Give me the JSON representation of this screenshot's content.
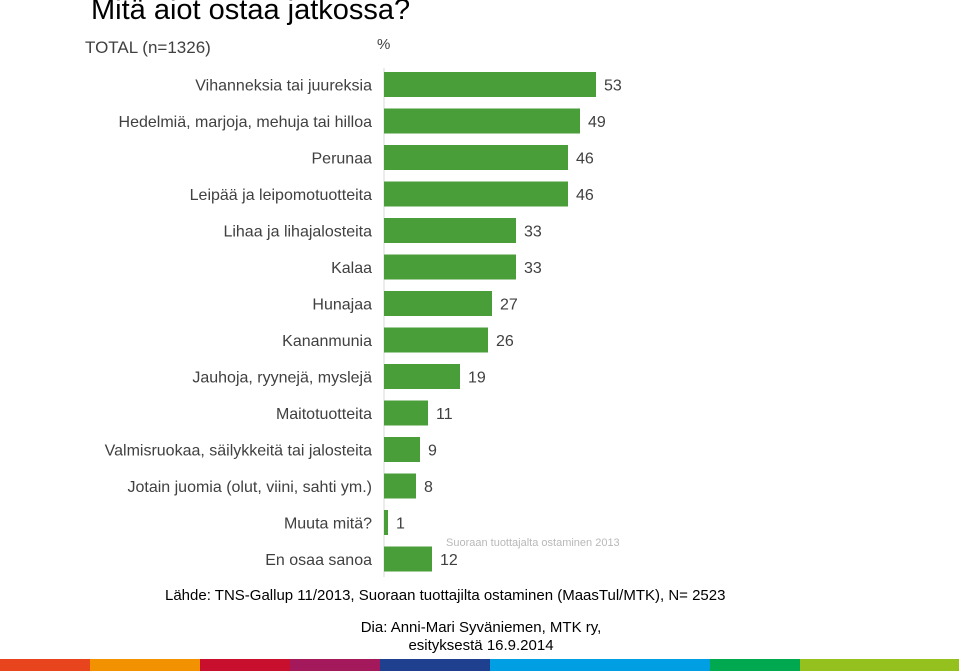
{
  "title": "Mitä aiot ostaa jatkossa?",
  "chart_data": {
    "type": "bar",
    "orientation": "horizontal",
    "subtitle": "TOTAL (n=1326)",
    "unit_label": "%",
    "categories": [
      "Vihanneksia tai juureksia",
      "Hedelmiä, marjoja, mehuja tai hilloa",
      "Perunaa",
      "Leipää ja leipomotuotteita",
      "Lihaa ja lihajalosteita",
      "Kalaa",
      "Hunajaa",
      "Kananmunia",
      "Jauhoja, ryynejä, myslejä",
      "Maitotuotteita",
      "Valmisruokaa, säilykkeitä tai jalosteita",
      "Jotain juomia (olut, viini, sahti ym.)",
      "Muuta mitä?",
      "En osaa sanoa"
    ],
    "values": [
      53,
      49,
      46,
      46,
      33,
      33,
      27,
      26,
      19,
      11,
      9,
      8,
      1,
      12
    ],
    "xlim": [
      0,
      100
    ],
    "bar_color": "#4a9e3a",
    "watermark": "Suoraan tuottajalta ostaminen 2013"
  },
  "footer": {
    "source": "Lähde: TNS-Gallup 11/2013, Suoraan tuottajilta ostaminen (MaasTul/MTK), N= 2523",
    "credit_line1": "Dia: Anni-Mari Syväniemen, MTK ry,",
    "credit_line2": "esityksestä 16.9.2014"
  },
  "stripe_colors": [
    "#e8451e",
    "#f39200",
    "#c8102e",
    "#a3195b",
    "#1f3f8f",
    "#009fe3",
    "#00a94f",
    "#95c11f"
  ]
}
